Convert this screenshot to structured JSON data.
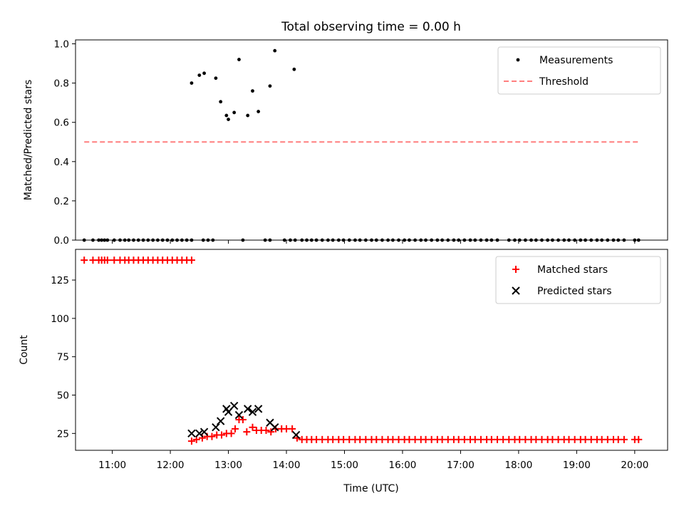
{
  "chart_data": {
    "title": "Total observing time = 0.00 h",
    "xlabel": "Time (UTC)",
    "xlim": [
      "10:22",
      "20:34"
    ],
    "xticks": [
      "11:00",
      "12:00",
      "13:00",
      "14:00",
      "15:00",
      "16:00",
      "17:00",
      "18:00",
      "19:00",
      "20:00"
    ],
    "panels": [
      {
        "type": "scatter",
        "ylabel": "Matched/Predicted stars",
        "ylim": [
          0,
          1.02
        ],
        "yticks": [
          "0.0",
          "0.2",
          "0.4",
          "0.6",
          "0.8",
          "1.0"
        ],
        "legend_position": "upper-right",
        "series": [
          {
            "name": "Measurements",
            "marker": "dot",
            "color": "#000000",
            "points": [
              [
                "10:31",
                0
              ],
              [
                "10:40",
                0
              ],
              [
                "10:46",
                0
              ],
              [
                "10:49",
                0
              ],
              [
                "10:52",
                0
              ],
              [
                "10:55",
                0
              ],
              [
                "11:02",
                0
              ],
              [
                "11:08",
                0
              ],
              [
                "11:13",
                0
              ],
              [
                "11:17",
                0
              ],
              [
                "11:22",
                0
              ],
              [
                "11:27",
                0
              ],
              [
                "11:32",
                0
              ],
              [
                "11:37",
                0
              ],
              [
                "11:42",
                0
              ],
              [
                "11:47",
                0
              ],
              [
                "11:52",
                0
              ],
              [
                "11:57",
                0
              ],
              [
                "12:02",
                0
              ],
              [
                "12:07",
                0
              ],
              [
                "12:12",
                0
              ],
              [
                "12:17",
                0
              ],
              [
                "12:22",
                0
              ],
              [
                "12:22",
                0.8
              ],
              [
                "12:30",
                0.84
              ],
              [
                "12:35",
                0.85
              ],
              [
                "12:47",
                0.825
              ],
              [
                "12:52",
                0.705
              ],
              [
                "12:58",
                0.635
              ],
              [
                "13:00",
                0.615
              ],
              [
                "13:06",
                0.65
              ],
              [
                "13:11",
                0.92
              ],
              [
                "13:20",
                0.635
              ],
              [
                "13:25",
                0.76
              ],
              [
                "13:31",
                0.655
              ],
              [
                "13:43",
                0.785
              ],
              [
                "13:48",
                0.965
              ],
              [
                "14:08",
                0.87
              ],
              [
                "12:34",
                0
              ],
              [
                "12:39",
                0
              ],
              [
                "12:44",
                0
              ],
              [
                "13:15",
                0
              ],
              [
                "13:38",
                0
              ],
              [
                "13:43",
                0
              ],
              [
                "13:58",
                0
              ],
              [
                "14:04",
                0
              ],
              [
                "14:09",
                0
              ],
              [
                "14:16",
                0
              ],
              [
                "14:21",
                0
              ],
              [
                "14:26",
                0
              ],
              [
                "14:31",
                0
              ],
              [
                "14:37",
                0
              ],
              [
                "14:43",
                0
              ],
              [
                "14:48",
                0
              ],
              [
                "14:54",
                0
              ],
              [
                "14:59",
                0
              ],
              [
                "15:05",
                0
              ],
              [
                "15:11",
                0
              ],
              [
                "15:16",
                0
              ],
              [
                "15:22",
                0
              ],
              [
                "15:28",
                0
              ],
              [
                "15:33",
                0
              ],
              [
                "15:39",
                0
              ],
              [
                "15:45",
                0
              ],
              [
                "15:50",
                0
              ],
              [
                "15:56",
                0
              ],
              [
                "16:02",
                0
              ],
              [
                "16:07",
                0
              ],
              [
                "16:13",
                0
              ],
              [
                "16:19",
                0
              ],
              [
                "16:24",
                0
              ],
              [
                "16:30",
                0
              ],
              [
                "16:36",
                0
              ],
              [
                "16:41",
                0
              ],
              [
                "16:47",
                0
              ],
              [
                "16:53",
                0
              ],
              [
                "16:58",
                0
              ],
              [
                "17:04",
                0
              ],
              [
                "17:10",
                0
              ],
              [
                "17:15",
                0
              ],
              [
                "17:21",
                0
              ],
              [
                "17:27",
                0
              ],
              [
                "17:32",
                0
              ],
              [
                "17:38",
                0
              ],
              [
                "17:50",
                0
              ],
              [
                "17:56",
                0
              ],
              [
                "18:01",
                0
              ],
              [
                "18:07",
                0
              ],
              [
                "18:13",
                0
              ],
              [
                "18:18",
                0
              ],
              [
                "18:24",
                0
              ],
              [
                "18:30",
                0
              ],
              [
                "18:35",
                0
              ],
              [
                "18:41",
                0
              ],
              [
                "18:47",
                0
              ],
              [
                "18:52",
                0
              ],
              [
                "18:58",
                0
              ],
              [
                "19:04",
                0
              ],
              [
                "19:09",
                0
              ],
              [
                "19:15",
                0
              ],
              [
                "19:21",
                0
              ],
              [
                "19:26",
                0
              ],
              [
                "19:32",
                0
              ],
              [
                "19:38",
                0
              ],
              [
                "19:43",
                0
              ],
              [
                "19:49",
                0
              ],
              [
                "20:00",
                0
              ],
              [
                "20:04",
                0
              ]
            ]
          },
          {
            "name": "Threshold",
            "marker": "dashed-line",
            "color": "#ff7f7f",
            "points": [
              [
                "10:31",
                0.5
              ],
              [
                "20:04",
                0.5
              ]
            ]
          }
        ]
      },
      {
        "type": "scatter",
        "ylabel": "Count",
        "ylim": [
          14,
          145
        ],
        "yticks": [
          "25",
          "50",
          "75",
          "100",
          "125"
        ],
        "legend_position": "upper-right",
        "series": [
          {
            "name": "Matched stars",
            "marker": "plus",
            "color": "#ff0000",
            "points": [
              [
                "10:31",
                138
              ],
              [
                "10:40",
                138
              ],
              [
                "10:46",
                138
              ],
              [
                "10:49",
                138
              ],
              [
                "10:52",
                138
              ],
              [
                "10:55",
                138
              ],
              [
                "11:02",
                138
              ],
              [
                "11:08",
                138
              ],
              [
                "11:13",
                138
              ],
              [
                "11:17",
                138
              ],
              [
                "11:22",
                138
              ],
              [
                "11:27",
                138
              ],
              [
                "11:32",
                138
              ],
              [
                "11:37",
                138
              ],
              [
                "11:42",
                138
              ],
              [
                "11:47",
                138
              ],
              [
                "11:52",
                138
              ],
              [
                "11:57",
                138
              ],
              [
                "12:02",
                138
              ],
              [
                "12:07",
                138
              ],
              [
                "12:12",
                138
              ],
              [
                "12:17",
                138
              ],
              [
                "12:22",
                138
              ],
              [
                "12:22",
                20
              ],
              [
                "12:27",
                21
              ],
              [
                "12:33",
                22
              ],
              [
                "12:38",
                23
              ],
              [
                "12:43",
                23
              ],
              [
                "12:48",
                24
              ],
              [
                "12:53",
                24
              ],
              [
                "12:58",
                25
              ],
              [
                "13:03",
                25
              ],
              [
                "13:07",
                28
              ],
              [
                "13:11",
                34
              ],
              [
                "13:15",
                34
              ],
              [
                "13:19",
                26
              ],
              [
                "13:25",
                29
              ],
              [
                "13:29",
                27
              ],
              [
                "13:34",
                27
              ],
              [
                "13:39",
                27
              ],
              [
                "13:44",
                26
              ],
              [
                "13:49",
                28
              ],
              [
                "13:55",
                28
              ],
              [
                "14:00",
                28
              ],
              [
                "14:06",
                28
              ],
              [
                "14:11",
                22
              ],
              [
                "14:16",
                21
              ],
              [
                "14:21",
                21
              ],
              [
                "14:26",
                21
              ],
              [
                "14:31",
                21
              ],
              [
                "14:37",
                21
              ],
              [
                "14:43",
                21
              ],
              [
                "14:48",
                21
              ],
              [
                "14:54",
                21
              ],
              [
                "14:59",
                21
              ],
              [
                "15:05",
                21
              ],
              [
                "15:11",
                21
              ],
              [
                "15:16",
                21
              ],
              [
                "15:22",
                21
              ],
              [
                "15:28",
                21
              ],
              [
                "15:33",
                21
              ],
              [
                "15:39",
                21
              ],
              [
                "15:45",
                21
              ],
              [
                "15:50",
                21
              ],
              [
                "15:56",
                21
              ],
              [
                "16:02",
                21
              ],
              [
                "16:07",
                21
              ],
              [
                "16:13",
                21
              ],
              [
                "16:19",
                21
              ],
              [
                "16:24",
                21
              ],
              [
                "16:30",
                21
              ],
              [
                "16:36",
                21
              ],
              [
                "16:41",
                21
              ],
              [
                "16:47",
                21
              ],
              [
                "16:53",
                21
              ],
              [
                "16:58",
                21
              ],
              [
                "17:04",
                21
              ],
              [
                "17:10",
                21
              ],
              [
                "17:15",
                21
              ],
              [
                "17:21",
                21
              ],
              [
                "17:27",
                21
              ],
              [
                "17:32",
                21
              ],
              [
                "17:38",
                21
              ],
              [
                "17:44",
                21
              ],
              [
                "17:50",
                21
              ],
              [
                "17:56",
                21
              ],
              [
                "18:01",
                21
              ],
              [
                "18:07",
                21
              ],
              [
                "18:13",
                21
              ],
              [
                "18:18",
                21
              ],
              [
                "18:24",
                21
              ],
              [
                "18:30",
                21
              ],
              [
                "18:35",
                21
              ],
              [
                "18:41",
                21
              ],
              [
                "18:47",
                21
              ],
              [
                "18:52",
                21
              ],
              [
                "18:58",
                21
              ],
              [
                "19:04",
                21
              ],
              [
                "19:09",
                21
              ],
              [
                "19:15",
                21
              ],
              [
                "19:21",
                21
              ],
              [
                "19:26",
                21
              ],
              [
                "19:32",
                21
              ],
              [
                "19:38",
                21
              ],
              [
                "19:43",
                21
              ],
              [
                "19:49",
                21
              ],
              [
                "20:00",
                21
              ],
              [
                "20:04",
                21
              ]
            ]
          },
          {
            "name": "Predicted stars",
            "marker": "x",
            "color": "#000000",
            "points": [
              [
                "12:22",
                25
              ],
              [
                "12:30",
                25
              ],
              [
                "12:35",
                26
              ],
              [
                "12:47",
                29
              ],
              [
                "12:52",
                33
              ],
              [
                "12:58",
                41
              ],
              [
                "13:00",
                39
              ],
              [
                "13:06",
                43
              ],
              [
                "13:11",
                37
              ],
              [
                "13:20",
                41
              ],
              [
                "13:25",
                39
              ],
              [
                "13:31",
                41
              ],
              [
                "13:43",
                32
              ],
              [
                "13:48",
                29
              ],
              [
                "14:10",
                24
              ]
            ]
          }
        ]
      }
    ]
  }
}
